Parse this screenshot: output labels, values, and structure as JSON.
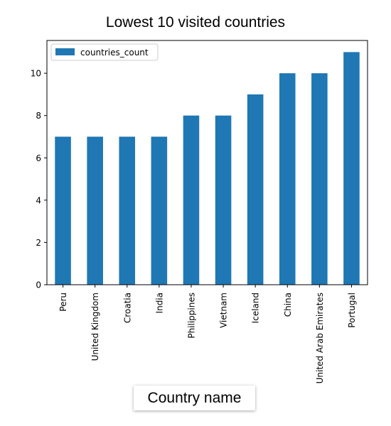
{
  "chart_data": {
    "type": "bar",
    "title": "Lowest 10 visited countries",
    "xlabel": "Country name",
    "ylabel": "",
    "categories": [
      "Peru",
      "United Kingdom",
      "Croatia",
      "India",
      "Philippines",
      "Vietnam",
      "Iceland",
      "China",
      "United Arab Emirates",
      "Portugal"
    ],
    "series": [
      {
        "name": "countries_count",
        "values": [
          7,
          7,
          7,
          7,
          8,
          8,
          9,
          10,
          10,
          11
        ]
      }
    ],
    "ylim": [
      0,
      11.55
    ],
    "yticks": [
      0,
      2,
      4,
      6,
      8,
      10
    ],
    "grid": false,
    "legend": "top-left",
    "bar_color": "#1f77b4"
  }
}
